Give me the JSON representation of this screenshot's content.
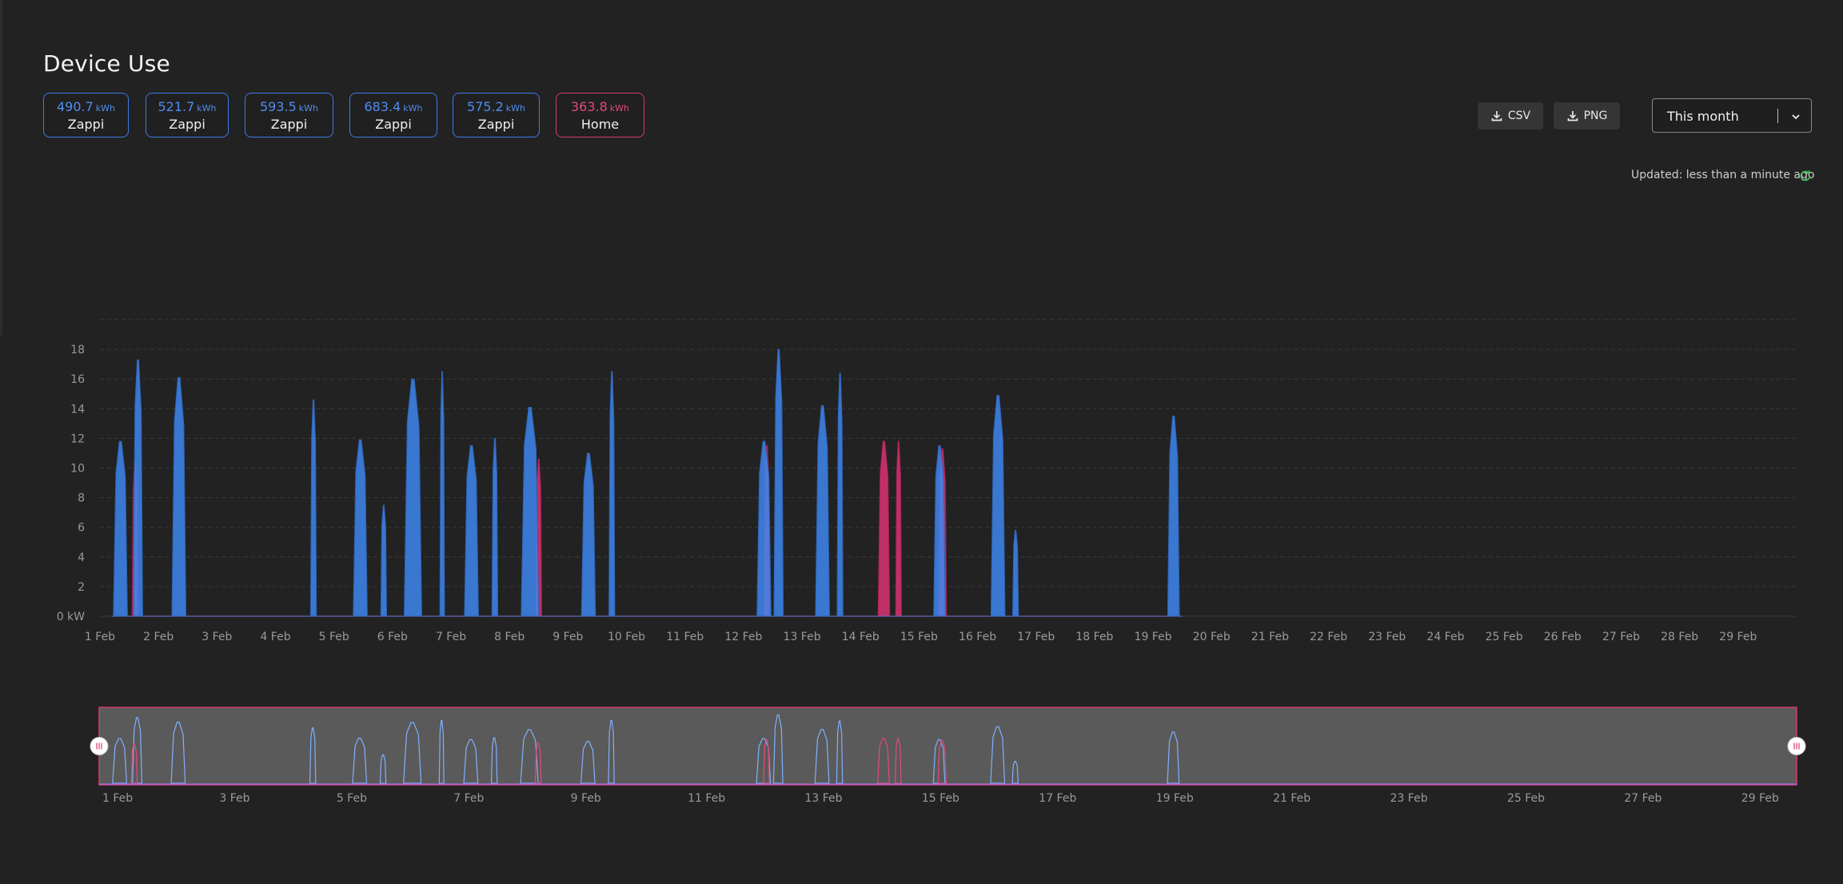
{
  "page": {
    "title": "Device Use"
  },
  "cards": [
    {
      "value": "490.7",
      "unit": "kWh",
      "label": "Zappi"
    },
    {
      "value": "521.7",
      "unit": "kWh",
      "label": "Zappi"
    },
    {
      "value": "593.5",
      "unit": "kWh",
      "label": "Zappi"
    },
    {
      "value": "683.4",
      "unit": "kWh",
      "label": "Zappi"
    },
    {
      "value": "575.2",
      "unit": "kWh",
      "label": "Zappi"
    },
    {
      "value": "363.8",
      "unit": "kWh",
      "label": "Home"
    }
  ],
  "toolbar": {
    "csv_label": "CSV",
    "png_label": "PNG",
    "icon": "download-icon"
  },
  "period_select": {
    "value": "This month"
  },
  "status": {
    "updated": "Updated: less than a minute ago",
    "icon": "refresh-icon"
  },
  "colors": {
    "zappi": "#3d86ee",
    "zappi_dark": "#2f63b3",
    "home": "#c8326a",
    "background": "#222222",
    "navigator_bg": "#5a5a5a"
  },
  "chart_data": {
    "type": "area",
    "y_unit_label": "0 kW",
    "y_ticks": [
      0,
      2,
      4,
      6,
      8,
      10,
      12,
      14,
      16,
      18
    ],
    "ylim": [
      0,
      20
    ],
    "xlim": [
      1,
      30
    ],
    "x_tick_labels": [
      "1 Feb",
      "2 Feb",
      "3 Feb",
      "4 Feb",
      "5 Feb",
      "6 Feb",
      "7 Feb",
      "8 Feb",
      "9 Feb",
      "10 Feb",
      "11 Feb",
      "12 Feb",
      "13 Feb",
      "14 Feb",
      "15 Feb",
      "16 Feb",
      "17 Feb",
      "18 Feb",
      "19 Feb",
      "20 Feb",
      "21 Feb",
      "22 Feb",
      "23 Feb",
      "24 Feb",
      "25 Feb",
      "26 Feb",
      "27 Feb",
      "28 Feb",
      "29 Feb"
    ],
    "navigator_tick_labels": [
      "1 Feb",
      "3 Feb",
      "5 Feb",
      "7 Feb",
      "9 Feb",
      "11 Feb",
      "13 Feb",
      "15 Feb",
      "17 Feb",
      "19 Feb",
      "21 Feb",
      "23 Feb",
      "25 Feb",
      "27 Feb",
      "29 Feb"
    ],
    "series": [
      {
        "name": "Zappi",
        "color": "#3d86ee",
        "peaks": [
          [
            1.35,
            0.12,
            11.8
          ],
          [
            1.65,
            0.08,
            17.3
          ],
          [
            2.35,
            0.12,
            16.1
          ],
          [
            4.65,
            0.05,
            14.6
          ],
          [
            5.45,
            0.12,
            11.9
          ],
          [
            5.85,
            0.05,
            7.5
          ],
          [
            6.35,
            0.15,
            16.0
          ],
          [
            6.85,
            0.04,
            16.5
          ],
          [
            7.35,
            0.12,
            11.5
          ],
          [
            7.75,
            0.05,
            12.0
          ],
          [
            8.35,
            0.15,
            14.1
          ],
          [
            9.35,
            0.12,
            11.0
          ],
          [
            9.75,
            0.05,
            16.5
          ],
          [
            12.35,
            0.12,
            11.8
          ],
          [
            12.6,
            0.08,
            18.0
          ],
          [
            13.35,
            0.12,
            14.2
          ],
          [
            13.65,
            0.05,
            16.4
          ],
          [
            15.35,
            0.1,
            11.5
          ],
          [
            16.35,
            0.12,
            14.9
          ],
          [
            16.65,
            0.05,
            5.8
          ],
          [
            19.35,
            0.1,
            13.5
          ]
        ]
      },
      {
        "name": "Home",
        "color": "#c8326a",
        "peaks": [
          [
            1.6,
            0.05,
            10.4
          ],
          [
            8.5,
            0.05,
            10.6
          ],
          [
            12.4,
            0.05,
            11.5
          ],
          [
            14.4,
            0.1,
            11.8
          ],
          [
            14.65,
            0.05,
            11.8
          ],
          [
            15.4,
            0.07,
            11.3
          ]
        ]
      }
    ]
  }
}
